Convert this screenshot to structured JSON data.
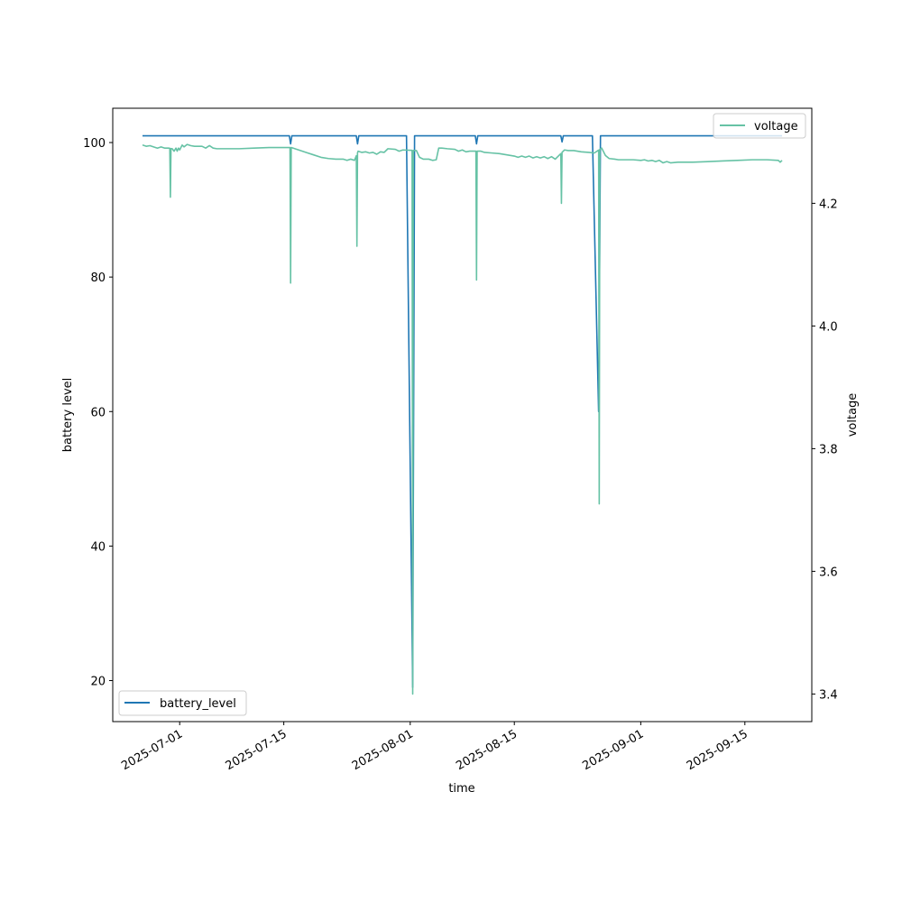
{
  "chart_data": {
    "type": "line",
    "xlabel": "time",
    "ylabel_left": "battery level",
    "ylabel_right": "voltage",
    "x_ticks": [
      "2025-07-01",
      "2025-07-15",
      "2025-08-01",
      "2025-08-15",
      "2025-09-01",
      "2025-09-15"
    ],
    "y_left_ticks": [
      20,
      40,
      60,
      80,
      100
    ],
    "y_left_range": [
      13.9,
      105.1
    ],
    "y_right_ticks": [
      3.4,
      3.6,
      3.8,
      4.0,
      4.2
    ],
    "y_right_range": [
      3.355,
      4.355
    ],
    "x_range": [
      "2025-06-22",
      "2025-09-24"
    ],
    "legend_left": {
      "label": "battery_level",
      "placement": "lower-left"
    },
    "legend_right": {
      "label": "voltage",
      "placement": "upper-right"
    },
    "colors": {
      "battery_level": "#1f77b4",
      "voltage": "#66c2a5"
    },
    "series": [
      {
        "name": "battery_level",
        "axis": "left",
        "points": [
          [
            "2025-06-26T00:00",
            101
          ],
          [
            "2025-07-15T18:00",
            101
          ],
          [
            "2025-07-15T22:00",
            99.8
          ],
          [
            "2025-07-16T02:00",
            101
          ],
          [
            "2025-07-24T18:00",
            101
          ],
          [
            "2025-07-24T22:00",
            99.8
          ],
          [
            "2025-07-25T02:00",
            101
          ],
          [
            "2025-07-31T12:00",
            101
          ],
          [
            "2025-08-01T08:00",
            19
          ],
          [
            "2025-08-01T14:00",
            101
          ],
          [
            "2025-08-09T18:00",
            101
          ],
          [
            "2025-08-09T22:00",
            99.8
          ],
          [
            "2025-08-10T02:00",
            101
          ],
          [
            "2025-08-21T06:00",
            101
          ],
          [
            "2025-08-21T10:00",
            100.1
          ],
          [
            "2025-08-21T14:00",
            101
          ],
          [
            "2025-08-25T12:00",
            101
          ],
          [
            "2025-08-26T08:00",
            60
          ],
          [
            "2025-08-26T14:00",
            101
          ],
          [
            "2025-09-20T00:00",
            101
          ]
        ]
      },
      {
        "name": "voltage",
        "axis": "right",
        "points": [
          [
            "2025-06-26T00:00",
            4.295
          ],
          [
            "2025-06-26T12:00",
            4.293
          ],
          [
            "2025-06-27T00:00",
            4.294
          ],
          [
            "2025-06-27T12:00",
            4.292
          ],
          [
            "2025-06-28T00:00",
            4.29
          ],
          [
            "2025-06-28T12:00",
            4.292
          ],
          [
            "2025-06-29T00:00",
            4.29
          ],
          [
            "2025-06-29T12:00",
            4.29
          ],
          [
            "2025-06-30T00:00",
            4.289
          ],
          [
            "2025-06-30T06:00",
            4.285
          ],
          [
            "2025-06-30T12:00",
            4.29
          ],
          [
            "2025-06-30T16:00",
            4.285
          ],
          [
            "2025-06-30T20:00",
            4.29
          ],
          [
            "2025-07-01T00:00",
            4.287
          ],
          [
            "2025-07-01T08:00",
            4.295
          ],
          [
            "2025-07-01T14:00",
            4.292
          ],
          [
            "2025-07-02T00:00",
            4.296
          ],
          [
            "2025-07-02T12:00",
            4.294
          ],
          [
            "2025-07-03T00:00",
            4.293
          ],
          [
            "2025-07-04T00:00",
            4.293
          ],
          [
            "2025-07-04T12:00",
            4.29
          ],
          [
            "2025-07-05T00:00",
            4.294
          ],
          [
            "2025-07-05T12:00",
            4.29
          ],
          [
            "2025-07-06T00:00",
            4.289
          ],
          [
            "2025-07-07T12:00",
            4.289
          ],
          [
            "2025-07-09T00:00",
            4.289
          ],
          [
            "2025-07-11T00:00",
            4.29
          ],
          [
            "2025-07-13T00:00",
            4.291
          ],
          [
            "2025-07-15T12:00",
            4.291
          ],
          [
            "2025-07-16T00:00",
            4.291
          ],
          [
            "2025-07-17T00:00",
            4.287
          ],
          [
            "2025-07-18T00:00",
            4.283
          ],
          [
            "2025-07-19T00:00",
            4.279
          ],
          [
            "2025-07-20T00:00",
            4.275
          ],
          [
            "2025-07-21T00:00",
            4.273
          ],
          [
            "2025-07-22T00:00",
            4.272
          ],
          [
            "2025-07-23T00:00",
            4.272
          ],
          [
            "2025-07-23T12:00",
            4.27
          ],
          [
            "2025-07-24T00:00",
            4.272
          ],
          [
            "2025-07-24T12:00",
            4.27
          ],
          [
            "2025-07-25T00:00",
            4.285
          ],
          [
            "2025-07-25T12:00",
            4.283
          ],
          [
            "2025-07-26T00:00",
            4.284
          ],
          [
            "2025-07-26T12:00",
            4.282
          ],
          [
            "2025-07-27T00:00",
            4.283
          ],
          [
            "2025-07-27T12:00",
            4.28
          ],
          [
            "2025-07-28T00:00",
            4.284
          ],
          [
            "2025-07-28T12:00",
            4.283
          ],
          [
            "2025-07-29T00:00",
            4.289
          ],
          [
            "2025-07-30T00:00",
            4.288
          ],
          [
            "2025-07-30T12:00",
            4.285
          ],
          [
            "2025-07-31T00:00",
            4.287
          ],
          [
            "2025-08-01T20:00",
            4.286
          ],
          [
            "2025-08-02T06:00",
            4.275
          ],
          [
            "2025-08-02T18:00",
            4.272
          ],
          [
            "2025-08-03T12:00",
            4.272
          ],
          [
            "2025-08-04T00:00",
            4.27
          ],
          [
            "2025-08-04T12:00",
            4.271
          ],
          [
            "2025-08-04T20:00",
            4.29
          ],
          [
            "2025-08-05T06:00",
            4.29
          ],
          [
            "2025-08-06T00:00",
            4.289
          ],
          [
            "2025-08-07T00:00",
            4.288
          ],
          [
            "2025-08-07T12:00",
            4.285
          ],
          [
            "2025-08-08T00:00",
            4.287
          ],
          [
            "2025-08-08T12:00",
            4.284
          ],
          [
            "2025-08-09T00:00",
            4.285
          ],
          [
            "2025-08-10T12:00",
            4.285
          ],
          [
            "2025-08-11T00:00",
            4.283
          ],
          [
            "2025-08-12T00:00",
            4.282
          ],
          [
            "2025-08-13T00:00",
            4.281
          ],
          [
            "2025-08-14T00:00",
            4.279
          ],
          [
            "2025-08-15T00:00",
            4.277
          ],
          [
            "2025-08-15T12:00",
            4.275
          ],
          [
            "2025-08-16T00:00",
            4.277
          ],
          [
            "2025-08-16T12:00",
            4.275
          ],
          [
            "2025-08-17T00:00",
            4.277
          ],
          [
            "2025-08-17T12:00",
            4.274
          ],
          [
            "2025-08-18T00:00",
            4.276
          ],
          [
            "2025-08-18T12:00",
            4.274
          ],
          [
            "2025-08-19T00:00",
            4.276
          ],
          [
            "2025-08-19T12:00",
            4.273
          ],
          [
            "2025-08-20T00:00",
            4.276
          ],
          [
            "2025-08-20T12:00",
            4.272
          ],
          [
            "2025-08-21T18:00",
            4.287
          ],
          [
            "2025-08-22T06:00",
            4.286
          ],
          [
            "2025-08-23T00:00",
            4.286
          ],
          [
            "2025-08-24T00:00",
            4.284
          ],
          [
            "2025-08-25T00:00",
            4.283
          ],
          [
            "2025-08-25T18:00",
            4.282
          ],
          [
            "2025-08-26T18:00",
            4.29
          ],
          [
            "2025-08-27T06:00",
            4.278
          ],
          [
            "2025-08-27T18:00",
            4.273
          ],
          [
            "2025-08-28T12:00",
            4.272
          ],
          [
            "2025-08-29T00:00",
            4.271
          ],
          [
            "2025-08-30T00:00",
            4.271
          ],
          [
            "2025-08-31T00:00",
            4.271
          ],
          [
            "2025-09-01T00:00",
            4.27
          ],
          [
            "2025-09-01T12:00",
            4.271
          ],
          [
            "2025-09-02T00:00",
            4.269
          ],
          [
            "2025-09-02T12:00",
            4.27
          ],
          [
            "2025-09-03T00:00",
            4.268
          ],
          [
            "2025-09-03T12:00",
            4.27
          ],
          [
            "2025-09-04T00:00",
            4.266
          ],
          [
            "2025-09-04T12:00",
            4.268
          ],
          [
            "2025-09-05T00:00",
            4.266
          ],
          [
            "2025-09-06T00:00",
            4.267
          ],
          [
            "2025-09-08T00:00",
            4.267
          ],
          [
            "2025-09-10T00:00",
            4.268
          ],
          [
            "2025-09-12T00:00",
            4.269
          ],
          [
            "2025-09-14T00:00",
            4.27
          ],
          [
            "2025-09-16T00:00",
            4.271
          ],
          [
            "2025-09-18T00:00",
            4.271
          ],
          [
            "2025-09-19T12:00",
            4.27
          ],
          [
            "2025-09-19T18:00",
            4.267
          ],
          [
            "2025-09-20T00:00",
            4.27
          ]
        ],
        "dips": [
          {
            "center": "2025-06-29T18:00",
            "min": 4.21
          },
          {
            "center": "2025-07-15T22:00",
            "min": 4.07
          },
          {
            "center": "2025-07-24T20:00",
            "min": 4.13
          },
          {
            "center": "2025-08-01T08:00",
            "min": 3.4
          },
          {
            "center": "2025-08-09T22:00",
            "min": 4.075
          },
          {
            "center": "2025-08-21T08:00",
            "min": 4.2
          },
          {
            "center": "2025-08-26T10:00",
            "min": 3.71
          }
        ]
      }
    ]
  }
}
